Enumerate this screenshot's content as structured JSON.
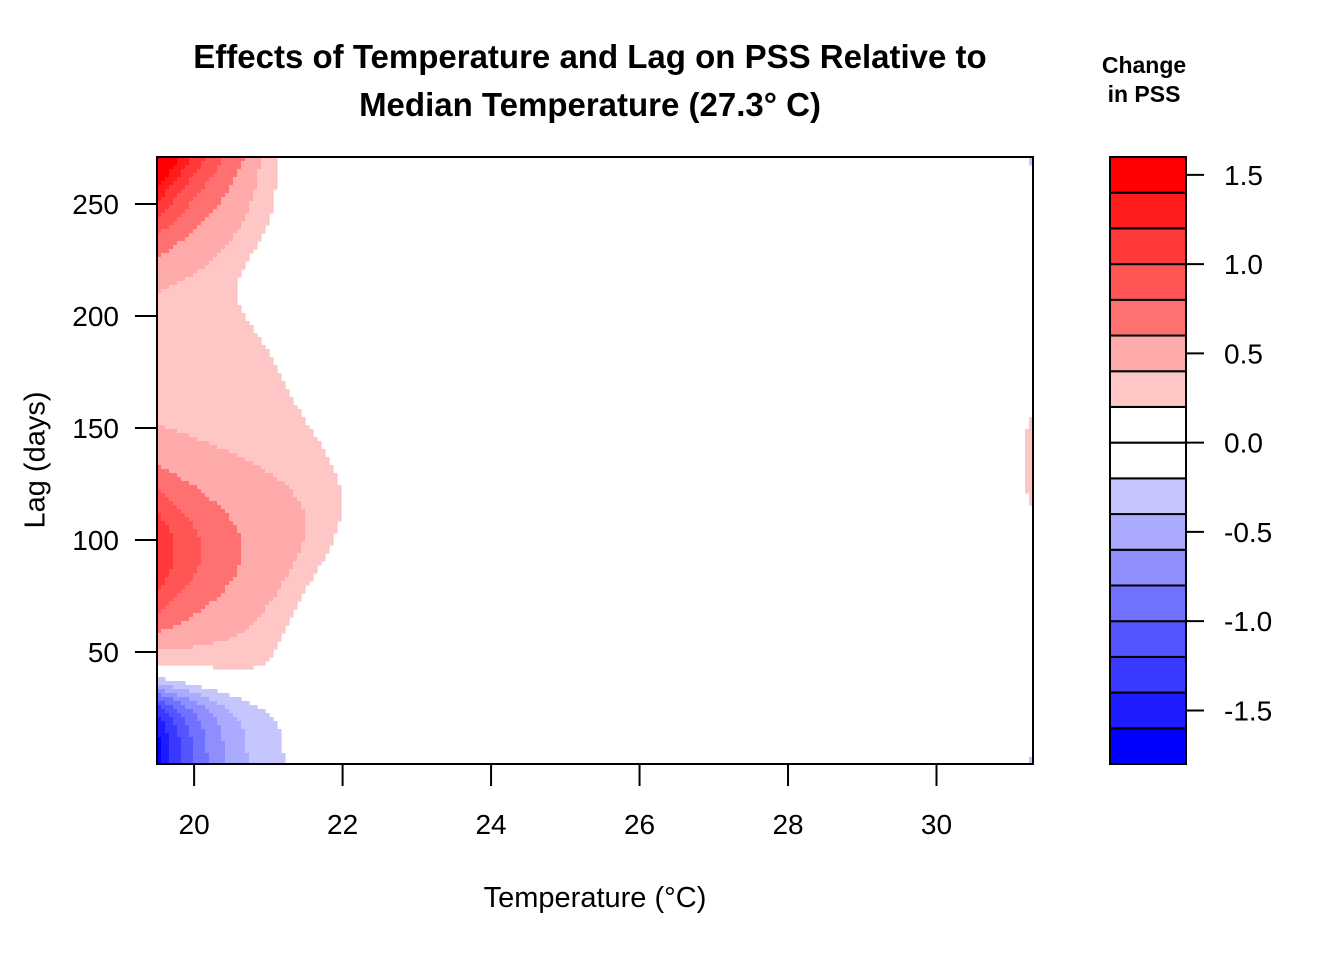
{
  "chart_data": {
    "type": "heatmap",
    "subtype": "filled-contour",
    "title_lines": [
      "Effects of Temperature and Lag on PSS Relative to",
      "Median Temperature (27.3° C)"
    ],
    "xlabel": "Temperature (°C)",
    "ylabel": "Lag (days)",
    "xlim": [
      19.5,
      31.3
    ],
    "ylim": [
      0,
      271
    ],
    "x_ticks": [
      20,
      22,
      24,
      26,
      28,
      30
    ],
    "y_ticks": [
      50,
      100,
      150,
      200,
      250
    ],
    "reference_temperature": 27.3,
    "legend": {
      "title_lines": [
        "Change",
        "in PSS"
      ],
      "placement": "right",
      "levels": [
        -1.8,
        -1.6,
        -1.4,
        -1.2,
        -1.0,
        -0.8,
        -0.6,
        -0.4,
        -0.2,
        0.0,
        0.2,
        0.4,
        0.6,
        0.8,
        1.0,
        1.2,
        1.4,
        1.6
      ],
      "colors": [
        "#0000ff",
        "#1c1cff",
        "#3939ff",
        "#5555ff",
        "#7171ff",
        "#8e8eff",
        "#aaaaff",
        "#c6c6ff",
        "#ffffff",
        "#ffffff",
        "#ffc6c6",
        "#ffaaaa",
        "#ff7171",
        "#ff5555",
        "#ff3939",
        "#ff1c1c",
        "#ff0000"
      ],
      "tick_values": [
        1.5,
        1.0,
        0.5,
        0.0,
        -0.5,
        -1.0,
        -1.5
      ]
    },
    "surface_features": [
      {
        "temperature": 19.5,
        "lag": 271,
        "change": 1.4
      },
      {
        "temperature": 19.5,
        "lag": 100,
        "change": 1.1
      },
      {
        "temperature": 19.5,
        "lag": 0,
        "change": -1.6
      },
      {
        "temperature": 31.3,
        "lag": 135,
        "change": 0.25
      },
      {
        "temperature": 31.3,
        "lag": 271,
        "change": -0.25
      },
      {
        "temperature": 31.3,
        "lag": 0,
        "change": -0.25
      }
    ]
  }
}
